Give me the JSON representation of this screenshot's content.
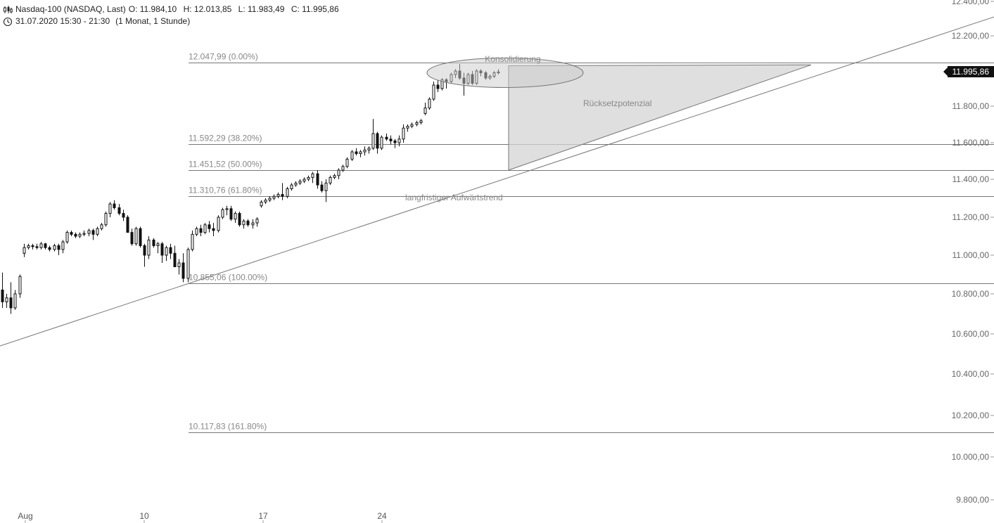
{
  "header": {
    "instrument": "Nasdaq-100 (NASDAQ, Last)",
    "open": "O: 11.984,10",
    "high": "H: 12.013,85",
    "low": "L: 11.983,49",
    "close": "C: 11.995,86",
    "period": "31.07.2020 15:30 - 21:30",
    "interval": "(1 Monat, 1 Stunde)"
  },
  "chart_data": {
    "type": "candlestick",
    "y_axis": {
      "ticks": [
        "12.400,00",
        "12.200,00",
        "11.800,00",
        "11.600,00",
        "11.400,00",
        "11.200,00",
        "11.000,00",
        "10.800,00",
        "10.600,00",
        "10.400,00",
        "10.200,00",
        "10.000,00",
        "9.800,00"
      ],
      "range": [
        9800,
        12400
      ]
    },
    "x_axis": {
      "ticks": [
        "Aug",
        "10",
        "17",
        "24"
      ]
    },
    "last_price": "11.995,86",
    "fibonacci_levels": [
      {
        "label": "12.047,99 (0.00%)",
        "value": 12047.99
      },
      {
        "label": "11.592,29 (38.20%)",
        "value": 11592.29
      },
      {
        "label": "11.451,52 (50.00%)",
        "value": 11451.52
      },
      {
        "label": "11.310,76 (61.80%)",
        "value": 11310.76
      },
      {
        "label": "10.855,06 (100.00%)",
        "value": 10855.06
      },
      {
        "label": "10.117,83 (161.80%)",
        "value": 10117.83
      }
    ],
    "annotations": {
      "consolidation": "Konsolidierung",
      "pullback": "Rücksetzpotenzial",
      "trendline": "langfristiger Aufwärtstrend"
    },
    "trendline": {
      "from": [
        0,
        10540
      ],
      "to": [
        1413,
        12310
      ]
    },
    "triangle": [
      [
        723,
        12030
      ],
      [
        1153,
        12035
      ],
      [
        723,
        11450
      ]
    ],
    "ellipse": {
      "cx": 718,
      "cy": 11990,
      "rx": 111,
      "ry": 21
    },
    "candles_approx": [
      [
        10820,
        10910,
        10730,
        10760
      ],
      [
        10760,
        10800,
        10730,
        10780
      ],
      [
        10780,
        10860,
        10700,
        10730
      ],
      [
        10730,
        10820,
        10720,
        10800
      ],
      [
        10800,
        10900,
        10780,
        10890
      ],
      [
        11010,
        11060,
        10990,
        11040
      ],
      [
        11040,
        11060,
        11030,
        11050
      ],
      [
        11050,
        11060,
        11030,
        11045
      ],
      [
        11045,
        11060,
        11030,
        11040
      ],
      [
        11040,
        11070,
        11030,
        11060
      ],
      [
        11060,
        11065,
        11030,
        11040
      ],
      [
        11040,
        11050,
        11020,
        11030
      ],
      [
        11030,
        11060,
        11020,
        11050
      ],
      [
        11050,
        11060,
        11000,
        11030
      ],
      [
        11030,
        11080,
        11010,
        11070
      ],
      [
        11070,
        11130,
        11060,
        11120
      ],
      [
        11120,
        11130,
        11100,
        11110
      ],
      [
        11110,
        11120,
        11090,
        11100
      ],
      [
        11100,
        11120,
        11090,
        11110
      ],
      [
        11110,
        11130,
        11100,
        11115
      ],
      [
        11115,
        11140,
        11100,
        11130
      ],
      [
        11130,
        11140,
        11080,
        11110
      ],
      [
        11110,
        11150,
        11100,
        11140
      ],
      [
        11140,
        11170,
        11130,
        11160
      ],
      [
        11160,
        11230,
        11150,
        11220
      ],
      [
        11220,
        11280,
        11200,
        11270
      ],
      [
        11270,
        11290,
        11240,
        11250
      ],
      [
        11250,
        11270,
        11210,
        11220
      ],
      [
        11220,
        11240,
        11180,
        11200
      ],
      [
        11200,
        11210,
        11130,
        11120
      ],
      [
        11120,
        11140,
        11050,
        11060
      ],
      [
        11060,
        11150,
        11050,
        11140
      ],
      [
        11140,
        11150,
        11040,
        11050
      ],
      [
        11050,
        11060,
        10940,
        11000
      ],
      [
        11000,
        11100,
        10980,
        11080
      ],
      [
        11080,
        11090,
        11040,
        11050
      ],
      [
        11050,
        11070,
        11010,
        11060
      ],
      [
        11060,
        11070,
        10960,
        11000
      ],
      [
        11000,
        11050,
        10970,
        11040
      ],
      [
        11040,
        11060,
        10980,
        11010
      ],
      [
        11010,
        11050,
        10950,
        10940
      ],
      [
        10940,
        10980,
        10900,
        10960
      ],
      [
        10960,
        11010,
        10860,
        10880
      ],
      [
        10880,
        11040,
        10860,
        11030
      ],
      [
        11030,
        11130,
        11020,
        11110
      ],
      [
        11110,
        11150,
        11100,
        11140
      ],
      [
        11140,
        11160,
        11100,
        11120
      ],
      [
        11120,
        11170,
        11110,
        11160
      ],
      [
        11160,
        11180,
        11120,
        11140
      ],
      [
        11140,
        11170,
        11100,
        11130
      ],
      [
        11130,
        11210,
        11120,
        11200
      ],
      [
        11200,
        11250,
        11190,
        11240
      ],
      [
        11240,
        11260,
        11210,
        11245
      ],
      [
        11245,
        11260,
        11180,
        11190
      ],
      [
        11190,
        11230,
        11170,
        11220
      ],
      [
        11220,
        11230,
        11150,
        11160
      ],
      [
        11160,
        11190,
        11140,
        11180
      ],
      [
        11180,
        11190,
        11150,
        11160
      ],
      [
        11160,
        11190,
        11140,
        11170
      ],
      [
        11170,
        11200,
        11150,
        11190
      ],
      [
        11260,
        11290,
        11250,
        11280
      ],
      [
        11280,
        11300,
        11270,
        11290
      ],
      [
        11290,
        11310,
        11280,
        11300
      ],
      [
        11300,
        11320,
        11290,
        11310
      ],
      [
        11310,
        11330,
        11300,
        11320
      ],
      [
        11320,
        11380,
        11290,
        11310
      ],
      [
        11310,
        11360,
        11300,
        11350
      ],
      [
        11350,
        11380,
        11340,
        11370
      ],
      [
        11370,
        11390,
        11360,
        11380
      ],
      [
        11380,
        11400,
        11370,
        11390
      ],
      [
        11390,
        11410,
        11380,
        11400
      ],
      [
        11400,
        11420,
        11390,
        11410
      ],
      [
        11410,
        11440,
        11380,
        11430
      ],
      [
        11430,
        11450,
        11350,
        11370
      ],
      [
        11370,
        11390,
        11330,
        11340
      ],
      [
        11340,
        11400,
        11280,
        11380
      ],
      [
        11380,
        11420,
        11370,
        11410
      ],
      [
        11410,
        11430,
        11400,
        11420
      ],
      [
        11420,
        11460,
        11400,
        11450
      ],
      [
        11450,
        11480,
        11440,
        11470
      ],
      [
        11470,
        11520,
        11460,
        11510
      ],
      [
        11510,
        11560,
        11500,
        11550
      ],
      [
        11550,
        11570,
        11530,
        11540
      ],
      [
        11540,
        11560,
        11520,
        11550
      ],
      [
        11550,
        11580,
        11530,
        11560
      ],
      [
        11560,
        11580,
        11540,
        11570
      ],
      [
        11570,
        11730,
        11560,
        11650
      ],
      [
        11650,
        11660,
        11540,
        11570
      ],
      [
        11570,
        11640,
        11560,
        11630
      ],
      [
        11630,
        11650,
        11610,
        11620
      ],
      [
        11620,
        11640,
        11590,
        11610
      ],
      [
        11610,
        11620,
        11570,
        11600
      ],
      [
        11600,
        11640,
        11580,
        11620
      ],
      [
        11620,
        11700,
        11600,
        11680
      ],
      [
        11680,
        11700,
        11660,
        11690
      ],
      [
        11690,
        11710,
        11680,
        11700
      ],
      [
        11700,
        11720,
        11690,
        11710
      ],
      [
        11710,
        11730,
        11700,
        11720
      ],
      [
        11760,
        11820,
        11750,
        11790
      ],
      [
        11790,
        11850,
        11780,
        11840
      ],
      [
        11840,
        11940,
        11830,
        11920
      ],
      [
        11920,
        11950,
        11880,
        11900
      ],
      [
        11900,
        11960,
        11890,
        11950
      ],
      [
        11950,
        11960,
        11900,
        11940
      ],
      [
        11940,
        11990,
        11930,
        11980
      ],
      [
        11980,
        12010,
        11960,
        12000
      ],
      [
        12000,
        12040,
        11950,
        11960
      ],
      [
        11960,
        11990,
        11860,
        11930
      ],
      [
        11930,
        11990,
        11920,
        11980
      ],
      [
        11980,
        12000,
        11920,
        11930
      ],
      [
        11930,
        12010,
        11920,
        12000
      ],
      [
        12000,
        12010,
        11970,
        11990
      ],
      [
        11990,
        12000,
        11950,
        11960
      ],
      [
        11960,
        11980,
        11950,
        11970
      ],
      [
        11970,
        12000,
        11960,
        11990
      ],
      [
        11990,
        12010,
        11980,
        11995
      ]
    ]
  }
}
